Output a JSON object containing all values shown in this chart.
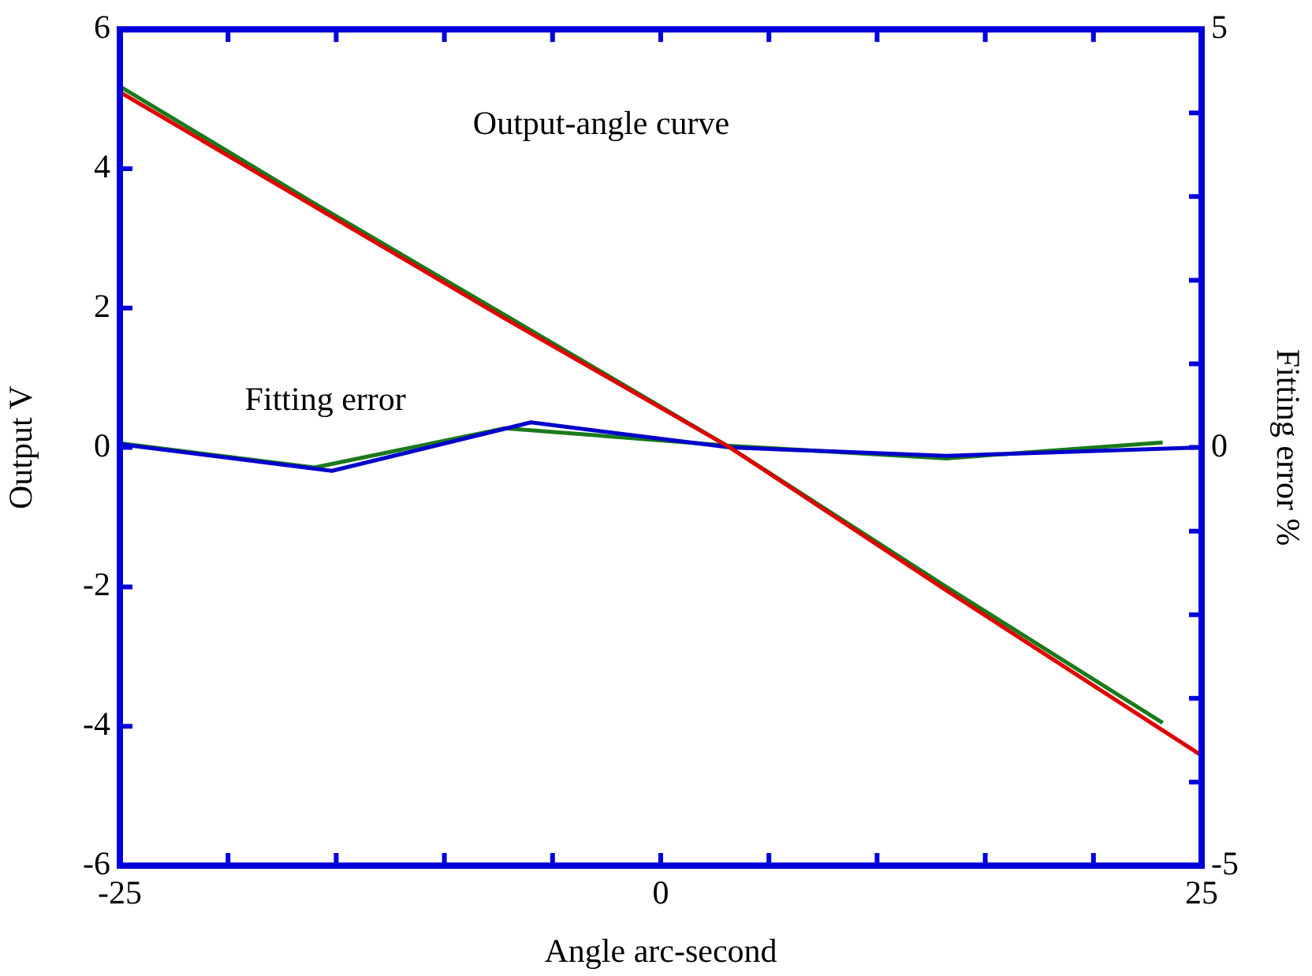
{
  "chart_data": {
    "type": "line",
    "xlabel": "Angle arc-second",
    "ylabel": "Output V",
    "y2label": "Fitting error %",
    "xlim": [
      -25,
      25
    ],
    "xticks": [
      -25,
      {
        "value": -20,
        "label": null
      },
      {
        "value": -15,
        "label": null
      },
      {
        "value": -10,
        "label": null
      },
      {
        "value": -5,
        "label": null
      },
      0,
      {
        "value": 5,
        "label": null
      },
      {
        "value": 10,
        "label": null
      },
      {
        "value": 15,
        "label": null
      },
      {
        "value": 20,
        "label": null
      },
      25
    ],
    "ylim": [
      -6,
      6
    ],
    "yticks": [
      -6,
      -4,
      -2,
      0,
      2,
      4,
      6
    ],
    "y2lim": [
      -5,
      5
    ],
    "y2ticks": [
      -5,
      {
        "value": -4,
        "label": null
      },
      {
        "value": -3,
        "label": null
      },
      {
        "value": -2,
        "label": null
      },
      {
        "value": -1,
        "label": null
      },
      0,
      {
        "value": 1,
        "label": null
      },
      {
        "value": 2,
        "label": null
      },
      {
        "value": 3,
        "label": null
      },
      {
        "value": 4,
        "label": null
      },
      5
    ],
    "grid": false,
    "legend": false,
    "marker": "none",
    "line_style": "solid",
    "annotations": [
      "Output-angle curve",
      "Fitting error"
    ],
    "series": [
      {
        "color": "#e00000",
        "x": [
          -25,
          -7.2,
          3.2,
          13.2,
          25
        ],
        "values": [
          5.1,
          1.85,
          0,
          -2.05,
          -4.42
        ]
      },
      {
        "color": "#1a7a1a",
        "x": [
          -25,
          -16,
          -7.2,
          3.2,
          13.2,
          23.2
        ],
        "values": [
          5.18,
          3.5,
          1.9,
          0,
          -2.0,
          -3.95
        ]
      },
      {
        "color": "#0000cc",
        "axis": "y2",
        "x": [
          -25,
          -15.2,
          -6,
          3.2,
          13.2,
          25
        ],
        "values": [
          0.04,
          -0.28,
          0.3,
          0,
          -0.1,
          0
        ]
      },
      {
        "color": "#1a7a1a",
        "axis": "y2",
        "x": [
          -25,
          -16,
          -7.2,
          3.2,
          13.2,
          23.2
        ],
        "values": [
          0.05,
          -0.24,
          0.23,
          0.02,
          -0.13,
          0.06
        ]
      }
    ]
  }
}
